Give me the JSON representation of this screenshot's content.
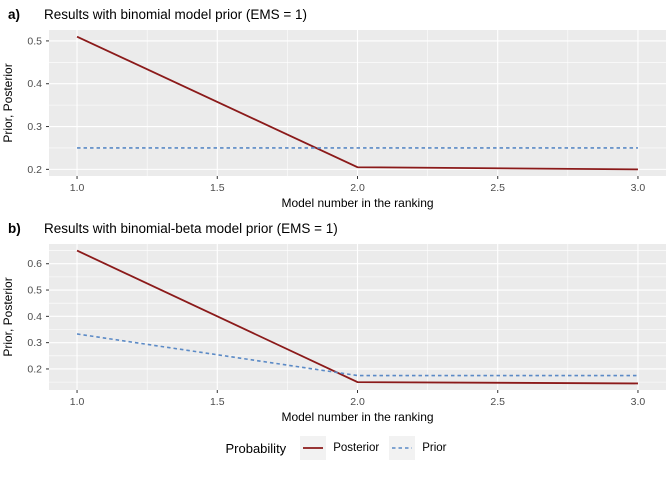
{
  "figure": {
    "legend": {
      "title": "Probability",
      "items": [
        {
          "label": "Posterior",
          "style": "solid",
          "color": "#8B1A1A"
        },
        {
          "label": "Prior",
          "style": "dashed",
          "color": "#5B8AC6"
        }
      ]
    }
  },
  "colors": {
    "panel_bg": "#EBEBEB",
    "grid_major": "#FFFFFF",
    "grid_minor": "#F7F7F7",
    "tick": "#333333",
    "axis_text": "#4D4D4D",
    "title_text": "#000000",
    "posterior": "#8B1A1A",
    "prior": "#5B8AC6"
  },
  "chart_data": [
    {
      "id": "a",
      "type": "line",
      "panel_label": "a)",
      "title": "Results with binomial model prior (EMS = 1)",
      "xlabel": "Model number in the ranking",
      "ylabel": "Prior, Posterior",
      "x": [
        1.0,
        2.0,
        3.0
      ],
      "series": [
        {
          "name": "Posterior",
          "style": "solid",
          "values": [
            0.51,
            0.205,
            0.2
          ]
        },
        {
          "name": "Prior",
          "style": "dashed",
          "values": [
            0.25,
            0.25,
            0.25
          ]
        }
      ],
      "xlim": [
        0.9,
        3.1
      ],
      "ylim": [
        0.1845,
        0.5255
      ],
      "xticks": [
        1.0,
        1.5,
        2.0,
        2.5,
        3.0
      ],
      "yticks": [
        0.2,
        0.3,
        0.4,
        0.5
      ],
      "grid": true,
      "legend_position": "none"
    },
    {
      "id": "b",
      "type": "line",
      "panel_label": "b)",
      "title": "Results with binomial-beta model prior (EMS = 1)",
      "xlabel": "Model number in the ranking",
      "ylabel": "Prior, Posterior",
      "x": [
        1.0,
        2.0,
        3.0
      ],
      "series": [
        {
          "name": "Posterior",
          "style": "solid",
          "values": [
            0.65,
            0.15,
            0.145
          ]
        },
        {
          "name": "Prior",
          "style": "dashed",
          "values": [
            0.333,
            0.175,
            0.175
          ]
        }
      ],
      "xlim": [
        0.9,
        3.1
      ],
      "ylim": [
        0.12,
        0.675
      ],
      "xticks": [
        1.0,
        1.5,
        2.0,
        2.5,
        3.0
      ],
      "yticks": [
        0.2,
        0.3,
        0.4,
        0.5,
        0.6
      ],
      "grid": true,
      "legend_position": "bottom"
    }
  ]
}
